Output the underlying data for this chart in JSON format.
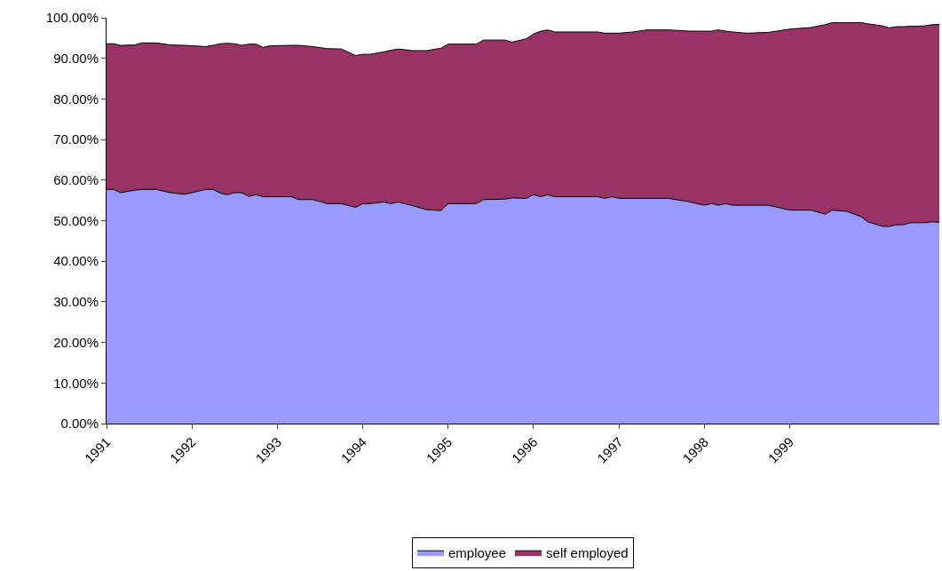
{
  "chart_data": {
    "type": "area",
    "stacked": true,
    "x": [
      "1991-01",
      "1991-02",
      "1991-03",
      "1991-05",
      "1991-06",
      "1991-08",
      "1991-10",
      "1991-12",
      "1992-01",
      "1992-03",
      "1992-04",
      "1992-05",
      "1992-06",
      "1992-07",
      "1992-08",
      "1992-09",
      "1992-10",
      "1992-11",
      "1992-12",
      "1993-03",
      "1993-04",
      "1993-06",
      "1993-08",
      "1993-10",
      "1993-12",
      "1994-01",
      "1994-02",
      "1994-04",
      "1994-05",
      "1994-06",
      "1994-08",
      "1994-10",
      "1994-12",
      "1995-01",
      "1995-05",
      "1995-06",
      "1995-09",
      "1995-10",
      "1995-12",
      "1996-01",
      "1996-02",
      "1996-03",
      "1996-04",
      "1996-10",
      "1996-11",
      "1996-12",
      "1997-01",
      "1997-03",
      "1997-05",
      "1997-08",
      "1997-11",
      "1998-01",
      "1998-02",
      "1998-03",
      "1998-04",
      "1998-05",
      "1998-07",
      "1998-10",
      "1999-01",
      "1999-04",
      "1999-06",
      "1999-07",
      "1999-09",
      "1999-11",
      "1999-12",
      "2000-02",
      "2000-03",
      "2000-04",
      "2000-05",
      "2000-06",
      "2000-08",
      "2000-09",
      "2000-10"
    ],
    "series": [
      {
        "name": "employee",
        "color": "#9999ff",
        "values": [
          57.7,
          57.7,
          56.9,
          57.5,
          57.7,
          57.7,
          56.9,
          56.5,
          56.9,
          57.7,
          57.7,
          56.8,
          56.4,
          56.9,
          56.9,
          56.0,
          56.4,
          55.9,
          55.9,
          55.9,
          55.2,
          55.2,
          54.2,
          54.2,
          53.3,
          54.2,
          54.2,
          54.6,
          54.2,
          54.6,
          53.7,
          52.7,
          52.5,
          54.2,
          54.2,
          55.2,
          55.3,
          55.6,
          55.5,
          56.4,
          55.9,
          56.4,
          55.9,
          55.9,
          55.5,
          55.9,
          55.5,
          55.5,
          55.5,
          55.5,
          54.6,
          53.8,
          54.2,
          53.8,
          54.2,
          53.8,
          53.8,
          53.8,
          52.6,
          52.6,
          51.6,
          52.6,
          52.3,
          51.0,
          49.7,
          48.6,
          48.6,
          49.0,
          49.0,
          49.5,
          49.5,
          49.7,
          49.6
        ]
      },
      {
        "name": "self employed",
        "color": "#993366",
        "values": [
          35.9,
          35.9,
          36.3,
          35.8,
          36.1,
          36.1,
          36.4,
          36.7,
          36.2,
          35.2,
          35.5,
          36.8,
          37.3,
          36.7,
          36.3,
          37.5,
          37.1,
          36.8,
          37.2,
          37.3,
          38.0,
          37.7,
          38.2,
          38.1,
          37.4,
          36.8,
          36.8,
          37.0,
          37.8,
          37.7,
          38.2,
          39.2,
          40.0,
          39.3,
          39.3,
          39.3,
          39.2,
          38.4,
          39.3,
          39.6,
          40.8,
          40.6,
          40.6,
          40.6,
          40.7,
          40.3,
          40.7,
          41.0,
          41.5,
          41.5,
          42.1,
          42.9,
          42.5,
          43.2,
          42.5,
          42.7,
          42.4,
          42.6,
          44.6,
          45.0,
          46.7,
          46.2,
          46.5,
          47.8,
          48.8,
          49.4,
          48.9,
          48.8,
          48.8,
          48.4,
          48.5,
          48.6,
          48.8
        ]
      }
    ],
    "xlim": [
      "1991-01",
      "2000-10"
    ],
    "xticks": [
      {
        "value": "1991-01",
        "label": "1991"
      },
      {
        "value": "1992-01",
        "label": "1992"
      },
      {
        "value": "1993-01",
        "label": "1993"
      },
      {
        "value": "1994-01",
        "label": "1994"
      },
      {
        "value": "1995-01",
        "label": "1995"
      },
      {
        "value": "1996-01",
        "label": "1996"
      },
      {
        "value": "1997-01",
        "label": "1997"
      },
      {
        "value": "1998-01",
        "label": "1998"
      },
      {
        "value": "1999-01",
        "label": "1999"
      }
    ],
    "ylim": [
      0,
      100
    ],
    "yticks": [
      {
        "value": 0,
        "label": "0.00%"
      },
      {
        "value": 10,
        "label": "10.00%"
      },
      {
        "value": 20,
        "label": "20.00%"
      },
      {
        "value": 30,
        "label": "30.00%"
      },
      {
        "value": 40,
        "label": "40.00%"
      },
      {
        "value": 50,
        "label": "50.00%"
      },
      {
        "value": 60,
        "label": "60.00%"
      },
      {
        "value": 70,
        "label": "70.00%"
      },
      {
        "value": 80,
        "label": "80.00%"
      },
      {
        "value": 90,
        "label": "90.00%"
      },
      {
        "value": 100,
        "label": "100.00%"
      }
    ],
    "legend": "bottom"
  }
}
